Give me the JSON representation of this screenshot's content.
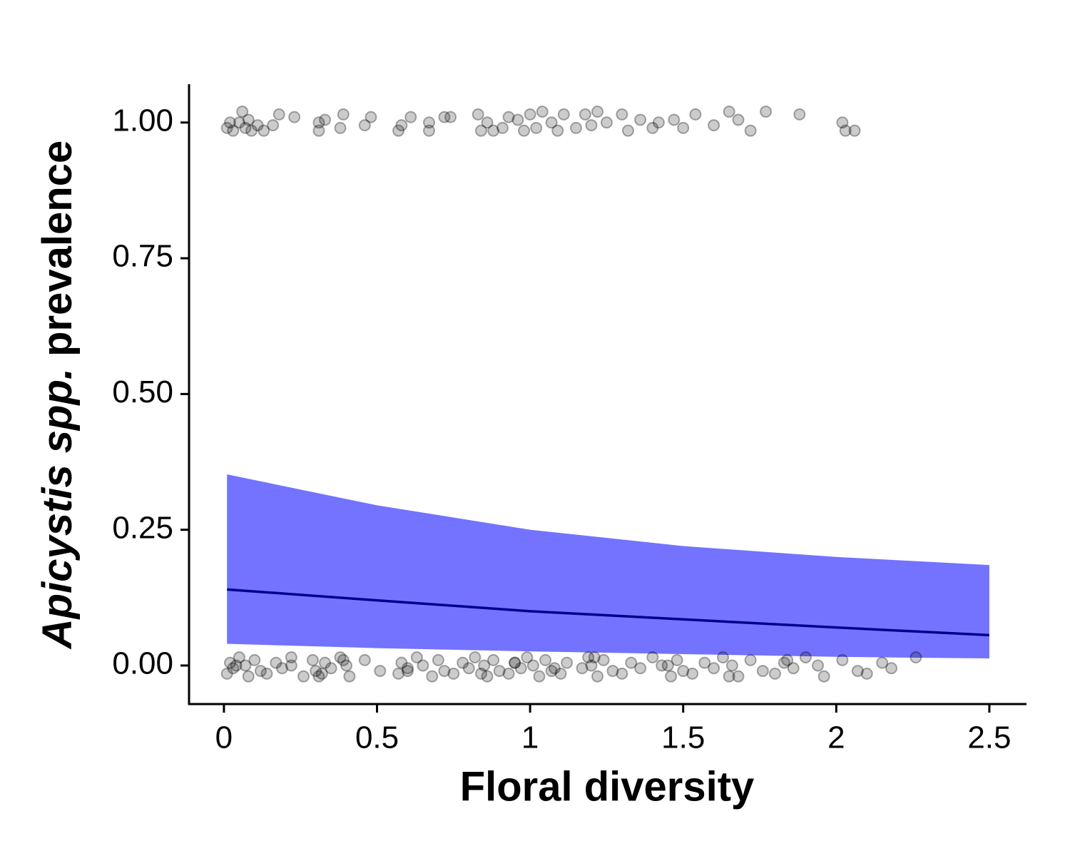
{
  "chart_data": {
    "type": "scatter",
    "x_label": "Floral diversity",
    "y_label": [
      "Apicystis spp.",
      "prevalence"
    ],
    "xlim": [
      -0.114,
      2.619
    ],
    "ylim": [
      -0.071,
      1.068
    ],
    "xticks": [
      0,
      0.5,
      1,
      1.5,
      2,
      2.5
    ],
    "yticks": [
      {
        "value": 0,
        "label": "0.00"
      },
      {
        "value": 0.25,
        "label": "0.25"
      },
      {
        "value": 0.5,
        "label": "0.50"
      },
      {
        "value": 0.75,
        "label": "0.75"
      },
      {
        "value": 1,
        "label": "1.00"
      }
    ],
    "color": "#000000",
    "alpha": 0.2,
    "x": [
      0.01,
      0.02,
      0.03,
      0.05,
      0.06,
      0.07,
      0.08,
      0.09,
      0.11,
      0.13,
      0.16,
      0.18,
      0.23,
      0.31,
      0.31,
      0.33,
      0.38,
      0.39,
      0.46,
      0.48,
      0.57,
      0.58,
      0.61,
      0.67,
      0.67,
      0.72,
      0.74,
      0.83,
      0.84,
      0.86,
      0.88,
      0.91,
      0.93,
      0.96,
      0.98,
      1.0,
      1.02,
      1.04,
      1.07,
      1.09,
      1.11,
      1.15,
      1.18,
      1.2,
      1.22,
      1.25,
      1.3,
      1.32,
      1.36,
      1.4,
      1.42,
      1.47,
      1.5,
      1.54,
      1.6,
      1.65,
      1.68,
      1.72,
      1.77,
      1.88,
      2.02,
      2.03,
      2.06,
      0.01,
      0.02,
      0.03,
      0.05,
      0.07,
      0.08,
      0.1,
      0.12,
      0.14,
      0.17,
      0.19,
      0.22,
      0.22,
      0.26,
      0.29,
      0.3,
      0.32,
      0.33,
      0.35,
      0.38,
      0.4,
      0.41,
      0.46,
      0.51,
      0.57,
      0.58,
      0.6,
      0.63,
      0.65,
      0.68,
      0.7,
      0.72,
      0.75,
      0.78,
      0.8,
      0.82,
      0.85,
      0.86,
      0.88,
      0.9,
      0.93,
      0.95,
      0.97,
      0.99,
      1.01,
      1.03,
      1.05,
      1.07,
      1.1,
      1.12,
      1.17,
      1.19,
      1.2,
      1.22,
      1.24,
      1.27,
      1.3,
      1.33,
      1.36,
      1.4,
      1.43,
      1.46,
      1.48,
      1.5,
      1.53,
      1.57,
      1.6,
      1.63,
      1.66,
      1.68,
      1.72,
      1.76,
      1.8,
      1.83,
      1.86,
      1.9,
      1.94,
      1.96,
      2.02,
      2.07,
      2.1,
      2.15,
      2.18,
      2.26,
      0.04,
      0.31,
      0.39,
      0.6,
      0.84,
      0.95,
      1.08,
      1.21,
      1.45,
      1.65,
      1.84
    ],
    "values": [
      0.99,
      1.0,
      0.985,
      1.0,
      1.02,
      0.99,
      1.005,
      0.985,
      0.995,
      0.985,
      0.995,
      1.015,
      1.01,
      1.0,
      0.985,
      1.005,
      0.99,
      1.015,
      0.995,
      1.01,
      0.985,
      0.995,
      1.01,
      0.985,
      1.0,
      1.01,
      1.01,
      1.015,
      0.985,
      1.0,
      0.985,
      0.99,
      1.01,
      1.005,
      0.985,
      1.015,
      0.99,
      1.02,
      1.0,
      0.985,
      1.015,
      0.99,
      1.015,
      0.995,
      1.02,
      1.0,
      1.015,
      0.985,
      1.005,
      0.99,
      1.0,
      1.005,
      0.99,
      1.015,
      0.995,
      1.02,
      1.005,
      0.985,
      1.02,
      1.015,
      1.0,
      0.985,
      0.985,
      -0.015,
      0.005,
      -0.005,
      0.015,
      0,
      -0.02,
      0.01,
      -0.01,
      -0.015,
      0.005,
      -0.005,
      0.015,
      0,
      -0.02,
      0.01,
      -0.01,
      -0.015,
      0.005,
      -0.005,
      0.015,
      0,
      -0.02,
      0.01,
      -0.01,
      -0.015,
      0.005,
      -0.005,
      0.015,
      0,
      -0.02,
      0.01,
      -0.01,
      -0.015,
      0.005,
      -0.005,
      0.015,
      0,
      -0.02,
      0.01,
      -0.01,
      -0.015,
      0.005,
      -0.005,
      0.015,
      0,
      -0.02,
      0.01,
      -0.01,
      -0.015,
      0.005,
      -0.005,
      0.015,
      0,
      -0.02,
      0.01,
      -0.01,
      -0.015,
      0.005,
      -0.005,
      0.015,
      0,
      -0.02,
      0.01,
      -0.01,
      -0.015,
      0.005,
      -0.005,
      0.015,
      0,
      -0.02,
      0.01,
      -0.01,
      -0.015,
      0.005,
      -0.005,
      0.015,
      0,
      -0.02,
      0.01,
      -0.01,
      -0.015,
      0.005,
      -0.005,
      0.015,
      0,
      -0.02,
      0.01,
      -0.01,
      -0.015,
      0.005,
      -0.005,
      0.015,
      0,
      -0.02,
      0.01
    ],
    "fit": {
      "x": [
        0.01,
        0.5,
        1.0,
        1.5,
        2.0,
        2.5
      ],
      "values": [
        0.14,
        0.12,
        0.1,
        0.085,
        0.07,
        0.056
      ],
      "lower": [
        0.04,
        0.032,
        0.026,
        0.021,
        0.016,
        0.013
      ],
      "upper": [
        0.352,
        0.295,
        0.25,
        0.22,
        0.2,
        0.185
      ],
      "color": "#00008b",
      "fill": "#7373ff"
    }
  }
}
